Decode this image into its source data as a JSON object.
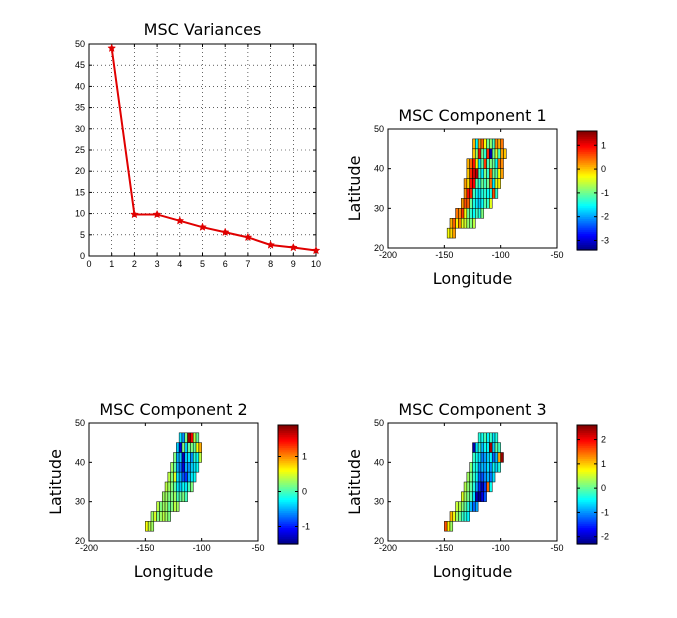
{
  "chart_data": [
    {
      "type": "line",
      "title": "MSC Variances",
      "xlabel": "",
      "ylabel": "",
      "xlim": [
        0,
        10
      ],
      "ylim": [
        0,
        50
      ],
      "x_ticks": [
        0,
        1,
        2,
        3,
        4,
        5,
        6,
        7,
        8,
        9,
        10
      ],
      "y_ticks": [
        0,
        5,
        10,
        15,
        20,
        25,
        30,
        35,
        40,
        45,
        50
      ],
      "grid": true,
      "marker": "star",
      "color": "#e00000",
      "x": [
        1,
        2,
        3,
        4,
        5,
        6,
        7,
        8,
        9,
        10
      ],
      "values": [
        49,
        9.8,
        9.8,
        8.3,
        6.8,
        5.6,
        4.4,
        2.6,
        2.0,
        1.3
      ]
    },
    {
      "type": "heatmap",
      "title": "MSC Component 1",
      "xlabel": "Longitude",
      "ylabel": "Latitude",
      "xlim": [
        -200,
        -50
      ],
      "ylim": [
        20,
        50
      ],
      "x_ticks": [
        -200,
        -150,
        -100,
        -50
      ],
      "y_ticks": [
        20,
        30,
        40,
        50
      ],
      "colorbar_ticks": [
        -3,
        -2,
        -1,
        0,
        1
      ],
      "clim": [
        -3.4,
        1.6
      ],
      "cell_size_deg": 5,
      "rows_from_top": [
        {
          "lat": 45,
          "lon_start": -125,
          "values": [
            0.1,
            -1.5,
            0.2,
            0.5,
            -0.3,
            -1.0,
            -0.8,
            -1.2,
            0.3,
            0.1,
            0.4
          ]
        },
        {
          "lat": 42.5,
          "lon_start": -125,
          "values": [
            0.0,
            -0.8,
            0.9,
            -1.0,
            -1.3,
            0.8,
            -3.2,
            -1.0,
            -0.5,
            -1.2,
            0.2,
            0.0
          ]
        },
        {
          "lat": 40,
          "lon_start": -130,
          "values": [
            0.1,
            0.5,
            0.9,
            -0.2,
            -1.6,
            -1.1,
            0.7,
            -1.2,
            -0.9,
            -1.0,
            -1.5,
            0.4,
            0.3
          ]
        },
        {
          "lat": 37.5,
          "lon_start": -130,
          "values": [
            0.0,
            0.8,
            1.2,
            1.3,
            -1.2,
            -1.6,
            -0.9,
            -1.3,
            0.5,
            -1.0,
            -1.1,
            -0.3,
            0.2
          ]
        },
        {
          "lat": 35,
          "lon_start": -132.5,
          "values": [
            0.2,
            -0.1,
            0.9,
            1.0,
            -1.1,
            -1.4,
            -1.0,
            -1.2,
            -1.0,
            0.4,
            -1.6,
            -0.4,
            -0.2
          ]
        },
        {
          "lat": 32.5,
          "lon_start": -132.5,
          "values": [
            0.3,
            0.9,
            0.8,
            -1.2,
            -1.5,
            -1.7,
            -1.4,
            -1.3,
            -1.5,
            -1.4,
            0.6,
            -1.3
          ]
        },
        {
          "lat": 30,
          "lon_start": -135,
          "values": [
            0.2,
            0.6,
            0.5,
            -1.0,
            -1.4,
            -1.6,
            -1.8,
            -1.5,
            -1.1,
            -1.3,
            -0.4
          ]
        },
        {
          "lat": 27.5,
          "lon_start": -140,
          "values": [
            0.4,
            0.3,
            0.7,
            -0.3,
            -1.0,
            -1.3,
            -1.5,
            -1.2,
            -1.4,
            -0.9
          ]
        },
        {
          "lat": 25,
          "lon_start": -145,
          "values": [
            0.1,
            0.5,
            -0.2,
            0.3,
            -0.4,
            -0.5,
            -0.8,
            -0.9,
            -0.6
          ]
        },
        {
          "lat": 22.5,
          "lon_start": -147.5,
          "values": [
            -0.3,
            -0.1,
            0.2
          ]
        }
      ]
    },
    {
      "type": "heatmap",
      "title": "MSC Component 2",
      "xlabel": "Longitude",
      "ylabel": "Latitude",
      "xlim": [
        -200,
        -50
      ],
      "ylim": [
        20,
        50
      ],
      "x_ticks": [
        -200,
        -150,
        -100,
        -50
      ],
      "y_ticks": [
        20,
        30,
        40,
        50
      ],
      "colorbar_ticks": [
        -1,
        0,
        1
      ],
      "clim": [
        -1.5,
        1.9
      ],
      "cell_size_deg": 5,
      "rows_from_top": [
        {
          "lat": 45,
          "lon_start": -120,
          "values": [
            -0.3,
            -0.6,
            0.2,
            1.8,
            1.5,
            0.4,
            0.1
          ]
        },
        {
          "lat": 42.5,
          "lon_start": -122.5,
          "values": [
            -0.4,
            -1.2,
            0.2,
            -0.4,
            0.1,
            0.2,
            0.1,
            0.6,
            0.9
          ]
        },
        {
          "lat": 40,
          "lon_start": -125,
          "values": [
            0.2,
            -0.5,
            -0.4,
            -1.3,
            -0.4,
            -0.3,
            -0.6,
            -0.1,
            -0.2,
            0.4
          ]
        },
        {
          "lat": 37.5,
          "lon_start": -127.5,
          "values": [
            0.3,
            0.1,
            -0.5,
            -0.7,
            -1.2,
            -0.5,
            -0.6,
            -0.4,
            -0.3,
            -0.2
          ]
        },
        {
          "lat": 35,
          "lon_start": -130,
          "values": [
            0.4,
            0.2,
            0.5,
            -0.3,
            -0.5,
            -0.8,
            -0.9,
            -0.5,
            -0.3,
            -0.2
          ]
        },
        {
          "lat": 32.5,
          "lon_start": -132.5,
          "values": [
            0.4,
            0.3,
            0.2,
            0.1,
            -0.3,
            -0.4,
            -0.2,
            -0.3,
            0.0,
            0.2
          ]
        },
        {
          "lat": 30,
          "lon_start": -135,
          "values": [
            0.3,
            0.3,
            0.2,
            0.2,
            0.3,
            0.0,
            0.1,
            0.2,
            0.0
          ]
        },
        {
          "lat": 27.5,
          "lon_start": -140,
          "values": [
            0.4,
            0.2,
            0.3,
            0.3,
            0.1,
            0.2,
            0.4,
            0.3
          ]
        },
        {
          "lat": 25,
          "lon_start": -145,
          "values": [
            0.3,
            0.5,
            0.2,
            0.3,
            0.4,
            0.3,
            0.2
          ]
        },
        {
          "lat": 22.5,
          "lon_start": -150,
          "values": [
            0.6,
            0.4,
            0.3
          ]
        }
      ]
    },
    {
      "type": "heatmap",
      "title": "MSC Component 3",
      "xlabel": "Longitude",
      "ylabel": "Latitude",
      "xlim": [
        -200,
        -50
      ],
      "ylim": [
        20,
        50
      ],
      "x_ticks": [
        -200,
        -150,
        -100,
        -50
      ],
      "y_ticks": [
        20,
        30,
        40,
        50
      ],
      "colorbar_ticks": [
        -2,
        -1,
        0,
        1,
        2
      ],
      "clim": [
        -2.3,
        2.6
      ],
      "cell_size_deg": 5,
      "rows_from_top": [
        {
          "lat": 45,
          "lon_start": -120,
          "values": [
            -0.3,
            -0.4,
            -0.1,
            -0.5,
            -0.2,
            -0.6,
            -0.3
          ]
        },
        {
          "lat": 42.5,
          "lon_start": -125,
          "values": [
            -2.1,
            -0.6,
            -0.2,
            -0.8,
            -0.4,
            -0.5,
            2.4,
            -0.7,
            0.0,
            -0.2
          ]
        },
        {
          "lat": 40,
          "lon_start": -125,
          "values": [
            -0.2,
            -0.4,
            -0.6,
            -1.1,
            -0.9,
            -0.7,
            -0.5,
            -1.2,
            -0.8,
            1.2,
            2.5
          ]
        },
        {
          "lat": 37.5,
          "lon_start": -127.5,
          "values": [
            0.2,
            -0.3,
            -0.4,
            -1.0,
            -0.8,
            -0.9,
            -0.6,
            -1.0,
            -0.4,
            -0.7,
            -0.3
          ]
        },
        {
          "lat": 35,
          "lon_start": -130,
          "values": [
            0.3,
            0.1,
            -0.2,
            -0.5,
            -1.2,
            -1.3,
            -1.0,
            -0.8,
            -1.1,
            -0.6
          ]
        },
        {
          "lat": 32.5,
          "lon_start": -132.5,
          "values": [
            0.4,
            0.2,
            0.0,
            -0.3,
            -0.9,
            -1.5,
            -2.0,
            -1.4,
            1.5,
            -0.4
          ]
        },
        {
          "lat": 30,
          "lon_start": -135,
          "values": [
            0.6,
            0.3,
            0.1,
            -0.1,
            -0.6,
            -2.0,
            -2.2,
            -1.8,
            -1.3
          ]
        },
        {
          "lat": 27.5,
          "lon_start": -140,
          "values": [
            0.5,
            0.4,
            0.2,
            0.0,
            -0.3,
            -0.8,
            -1.2,
            -0.9
          ]
        },
        {
          "lat": 25,
          "lon_start": -145,
          "values": [
            1.1,
            0.7,
            0.3,
            0.1,
            -0.2,
            -0.3,
            -0.5
          ]
        },
        {
          "lat": 22.5,
          "lon_start": -150,
          "values": [
            1.6,
            0.8,
            0.3
          ]
        }
      ]
    }
  ]
}
